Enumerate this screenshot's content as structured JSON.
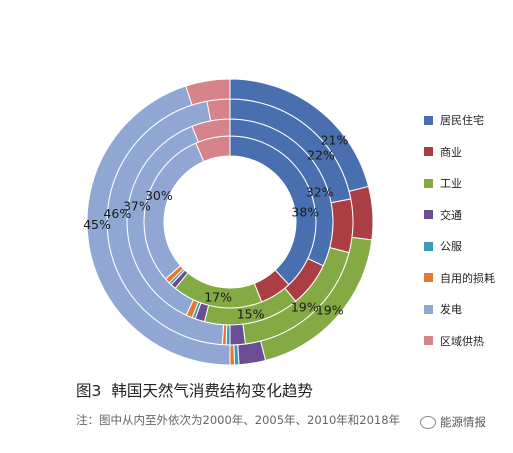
{
  "chart_data": {
    "type": "donut",
    "rings": [
      "2000年",
      "2005年",
      "2010年",
      "2018年"
    ],
    "categories": [
      "居民住宅",
      "商业",
      "工业",
      "交通",
      "公服",
      "自用的损耗",
      "发电",
      "区域供热"
    ],
    "colors": [
      "#4a6fb0",
      "#ab3e43",
      "#84aa43",
      "#6a4d93",
      "#3d9bb5",
      "#e07a35",
      "#91a7d3",
      "#d6838a"
    ],
    "series": [
      {
        "name": "2000年",
        "values": [
          38,
          6,
          17,
          1,
          0.5,
          1,
          30,
          6.5
        ]
      },
      {
        "name": "2005年",
        "values": [
          32,
          7,
          15,
          1.5,
          0.5,
          1,
          37,
          6
        ]
      },
      {
        "name": "2010年",
        "values": [
          22,
          7,
          19,
          2,
          0.5,
          0.5,
          46,
          3
        ]
      },
      {
        "name": "2018年",
        "values": [
          21,
          6,
          19,
          3,
          0.5,
          0.5,
          45,
          5
        ]
      }
    ],
    "data_labels": [
      {
        "ring": 0,
        "category": 0,
        "text": "38%"
      },
      {
        "ring": 1,
        "category": 0,
        "text": "32%"
      },
      {
        "ring": 2,
        "category": 0,
        "text": "22%"
      },
      {
        "ring": 3,
        "category": 0,
        "text": "21%"
      },
      {
        "ring": 0,
        "category": 2,
        "text": "17%"
      },
      {
        "ring": 1,
        "category": 2,
        "text": "15%"
      },
      {
        "ring": 2,
        "category": 2,
        "text": "19%"
      },
      {
        "ring": 3,
        "category": 2,
        "text": "19%"
      },
      {
        "ring": 0,
        "category": 6,
        "text": "30%"
      },
      {
        "ring": 1,
        "category": 6,
        "text": "37%"
      },
      {
        "ring": 2,
        "category": 6,
        "text": "46%"
      },
      {
        "ring": 3,
        "category": 6,
        "text": "45%"
      }
    ],
    "legend_position": "right",
    "title": "韩国天然气消费结构变化趋势"
  },
  "caption": {
    "label": "图3",
    "title": "韩国天然气消费结构变化趋势",
    "note": "注：图中从内至外依次为2000年、2005年、2010年和2018年"
  },
  "watermark": "能源情报"
}
